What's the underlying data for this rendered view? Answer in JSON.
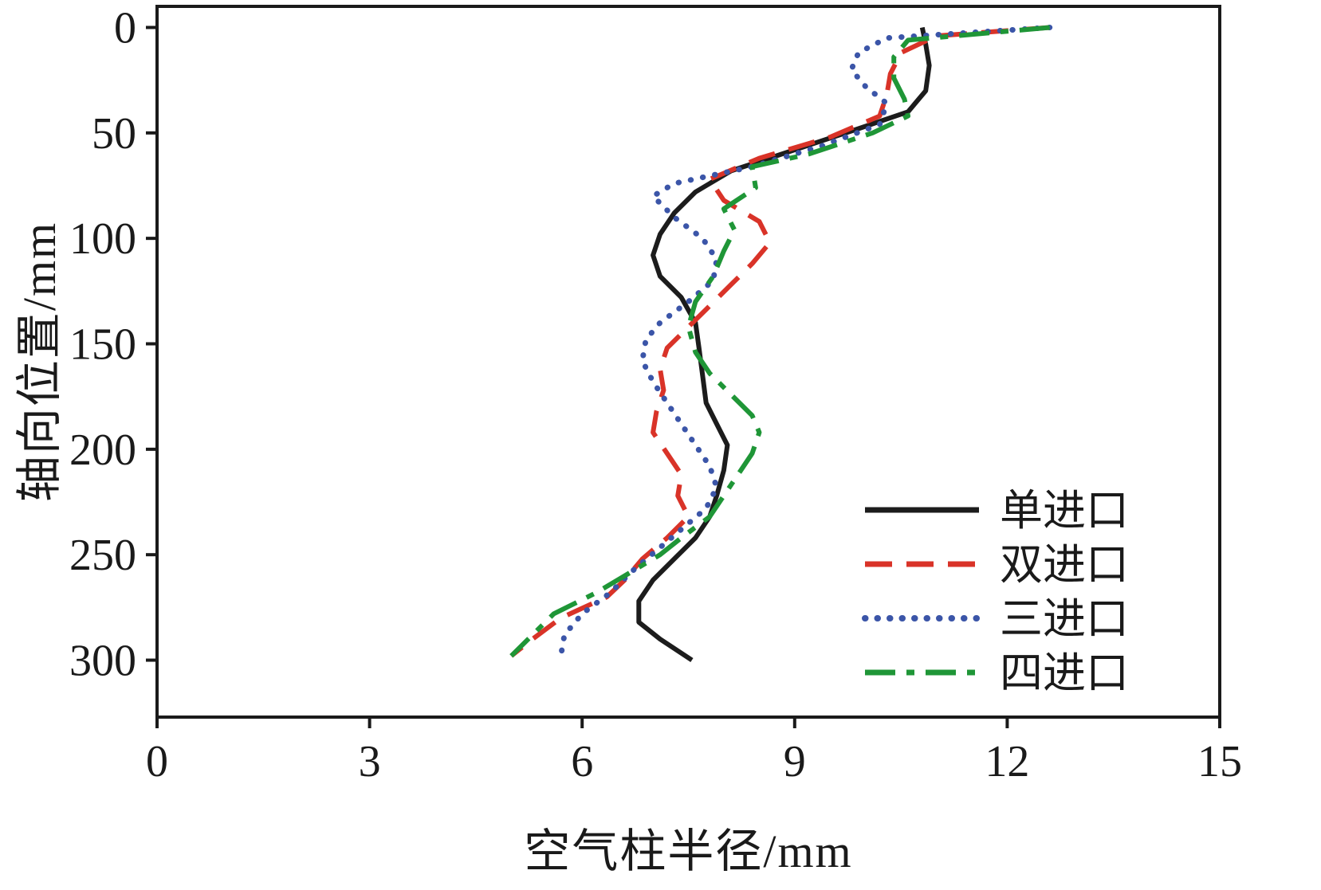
{
  "chart_data": {
    "type": "line",
    "title": "",
    "xlabel": "空气柱半径/mm",
    "ylabel": "轴向位置/mm",
    "xlim": [
      0,
      15
    ],
    "ylim": [
      0,
      300
    ],
    "xticks": [
      0,
      3,
      6,
      9,
      12,
      15
    ],
    "yticks": [
      0,
      50,
      100,
      150,
      200,
      250,
      300
    ],
    "y_axis_inverted": true,
    "grid": false,
    "legend_position": "lower-right-inside",
    "axis_color": "#1a1a1a",
    "series": [
      {
        "name": "单进口",
        "color": "#1c1c1c",
        "line_style": "solid",
        "points": [
          [
            10.8,
            0
          ],
          [
            10.85,
            8
          ],
          [
            10.9,
            18
          ],
          [
            10.85,
            30
          ],
          [
            10.6,
            40
          ],
          [
            9.9,
            48
          ],
          [
            9.0,
            58
          ],
          [
            8.1,
            68
          ],
          [
            7.6,
            78
          ],
          [
            7.3,
            88
          ],
          [
            7.1,
            98
          ],
          [
            7.0,
            108
          ],
          [
            7.1,
            118
          ],
          [
            7.4,
            128
          ],
          [
            7.6,
            140
          ],
          [
            7.65,
            152
          ],
          [
            7.7,
            165
          ],
          [
            7.75,
            178
          ],
          [
            7.9,
            188
          ],
          [
            8.05,
            198
          ],
          [
            8.0,
            210
          ],
          [
            7.9,
            222
          ],
          [
            7.8,
            232
          ],
          [
            7.6,
            242
          ],
          [
            7.3,
            252
          ],
          [
            7.0,
            262
          ],
          [
            6.8,
            272
          ],
          [
            6.8,
            282
          ],
          [
            7.1,
            290
          ],
          [
            7.55,
            300
          ]
        ]
      },
      {
        "name": "双进口",
        "color": "#d93328",
        "line_style": "dashed",
        "points": [
          [
            12.6,
            0
          ],
          [
            11.0,
            4
          ],
          [
            10.5,
            12
          ],
          [
            10.35,
            22
          ],
          [
            10.3,
            32
          ],
          [
            10.2,
            42
          ],
          [
            9.5,
            52
          ],
          [
            8.5,
            62
          ],
          [
            7.8,
            72
          ],
          [
            8.0,
            82
          ],
          [
            8.5,
            92
          ],
          [
            8.65,
            102
          ],
          [
            8.4,
            112
          ],
          [
            8.1,
            122
          ],
          [
            7.8,
            132
          ],
          [
            7.5,
            142
          ],
          [
            7.2,
            152
          ],
          [
            7.1,
            162
          ],
          [
            7.15,
            172
          ],
          [
            7.05,
            182
          ],
          [
            7.0,
            192
          ],
          [
            7.2,
            202
          ],
          [
            7.4,
            212
          ],
          [
            7.35,
            222
          ],
          [
            7.5,
            232
          ],
          [
            7.2,
            242
          ],
          [
            6.85,
            252
          ],
          [
            6.6,
            262
          ],
          [
            6.35,
            270
          ],
          [
            5.7,
            280
          ],
          [
            5.3,
            290
          ],
          [
            5.0,
            298
          ]
        ]
      },
      {
        "name": "三进口",
        "color": "#3b55a8",
        "line_style": "dotted",
        "points": [
          [
            12.6,
            0
          ],
          [
            10.3,
            5
          ],
          [
            9.9,
            12
          ],
          [
            9.8,
            20
          ],
          [
            10.0,
            28
          ],
          [
            10.3,
            36
          ],
          [
            10.2,
            46
          ],
          [
            9.4,
            56
          ],
          [
            8.4,
            66
          ],
          [
            7.3,
            74
          ],
          [
            7.0,
            80
          ],
          [
            7.3,
            90
          ],
          [
            7.7,
            100
          ],
          [
            7.9,
            110
          ],
          [
            7.85,
            120
          ],
          [
            7.5,
            130
          ],
          [
            7.1,
            140
          ],
          [
            6.9,
            148
          ],
          [
            6.85,
            158
          ],
          [
            7.0,
            168
          ],
          [
            7.2,
            178
          ],
          [
            7.4,
            188
          ],
          [
            7.6,
            198
          ],
          [
            7.8,
            208
          ],
          [
            7.9,
            218
          ],
          [
            7.75,
            228
          ],
          [
            7.4,
            238
          ],
          [
            7.05,
            248
          ],
          [
            6.7,
            258
          ],
          [
            6.4,
            268
          ],
          [
            6.0,
            278
          ],
          [
            5.75,
            288
          ],
          [
            5.7,
            298
          ]
        ]
      },
      {
        "name": "四进口",
        "color": "#1f9637",
        "line_style": "dashdot",
        "points": [
          [
            12.6,
            0
          ],
          [
            10.6,
            6
          ],
          [
            10.4,
            14
          ],
          [
            10.4,
            24
          ],
          [
            10.55,
            34
          ],
          [
            10.6,
            42
          ],
          [
            10.1,
            50
          ],
          [
            9.2,
            60
          ],
          [
            8.4,
            66
          ],
          [
            8.45,
            76
          ],
          [
            8.0,
            86
          ],
          [
            8.15,
            96
          ],
          [
            8.0,
            106
          ],
          [
            7.85,
            118
          ],
          [
            7.6,
            130
          ],
          [
            7.5,
            142
          ],
          [
            7.6,
            154
          ],
          [
            7.8,
            164
          ],
          [
            8.1,
            174
          ],
          [
            8.4,
            184
          ],
          [
            8.5,
            192
          ],
          [
            8.4,
            202
          ],
          [
            8.2,
            212
          ],
          [
            8.0,
            222
          ],
          [
            7.8,
            232
          ],
          [
            7.4,
            242
          ],
          [
            7.1,
            250
          ],
          [
            6.6,
            260
          ],
          [
            6.2,
            268
          ],
          [
            5.6,
            278
          ],
          [
            5.3,
            288
          ],
          [
            5.0,
            298
          ]
        ]
      }
    ]
  }
}
